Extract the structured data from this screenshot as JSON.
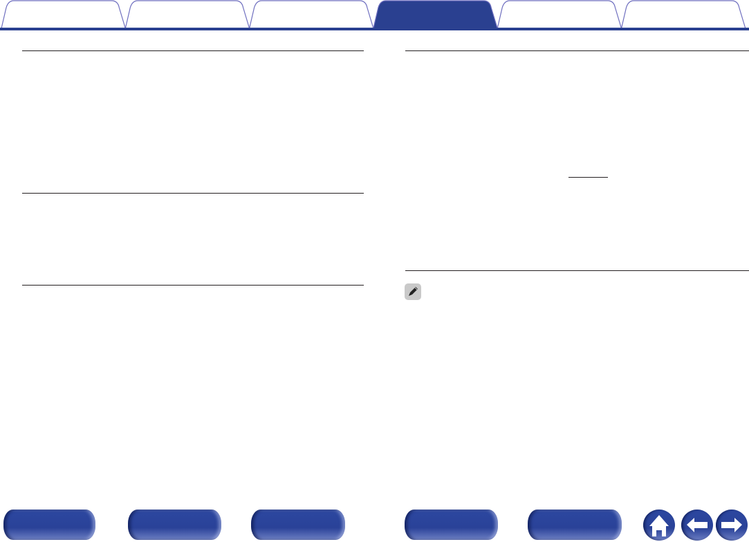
{
  "header": {
    "tabs": [
      {
        "label": "",
        "active": false
      },
      {
        "label": "",
        "active": false
      },
      {
        "label": "",
        "active": false
      },
      {
        "label": "",
        "active": true
      },
      {
        "label": "",
        "active": false
      },
      {
        "label": "",
        "active": false
      }
    ]
  },
  "colors": {
    "accent": "#2a4090",
    "tab_outline": "#6e6ebf",
    "rule": "#231f20"
  },
  "note": {
    "icon": "pencil-icon"
  },
  "footer": {
    "buttons": [
      "",
      "",
      "",
      "",
      ""
    ],
    "icons": [
      "home-icon",
      "back-arrow-icon",
      "forward-arrow-icon"
    ]
  }
}
